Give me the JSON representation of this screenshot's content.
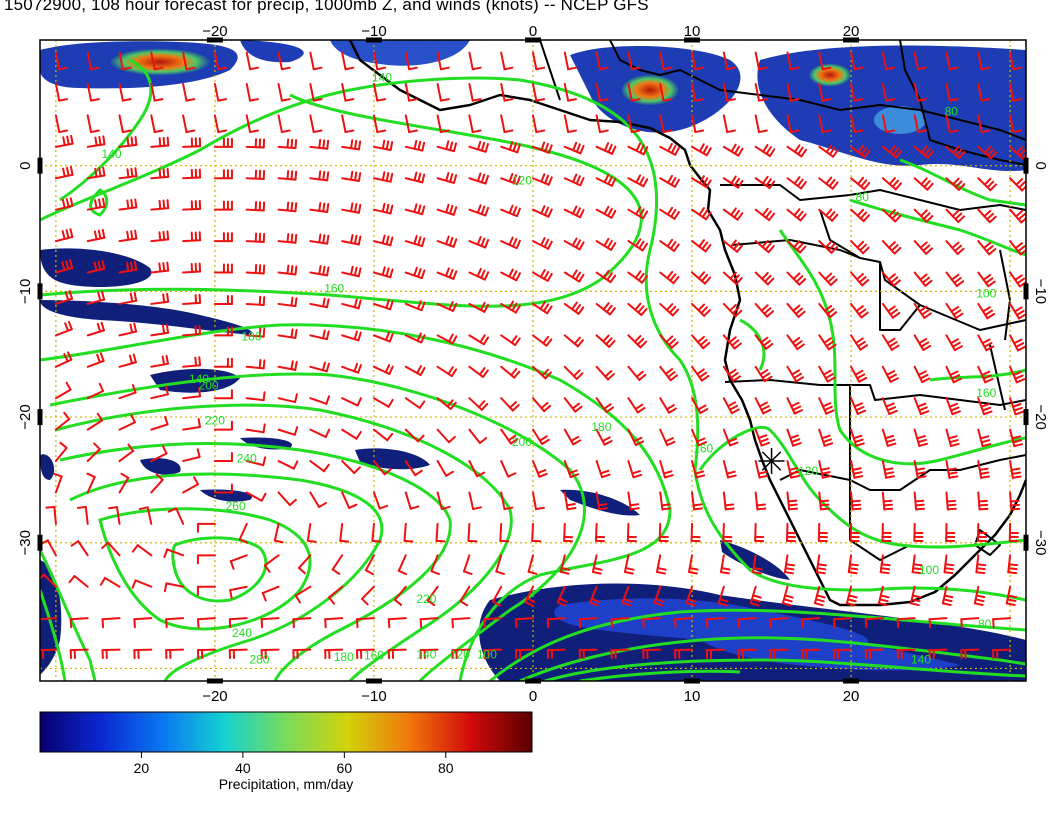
{
  "title": "15072900, 108 hour forecast for precip, 1000mb Z, and winds (knots) -- NCEP GFS",
  "map": {
    "lon_range": [
      -31,
      31
    ],
    "lat_range": [
      -41,
      10
    ],
    "lon_ticks": [
      {
        "value": -20,
        "label": "−20"
      },
      {
        "value": -10,
        "label": "−10"
      },
      {
        "value": 0,
        "label": "0"
      },
      {
        "value": 10,
        "label": "10"
      },
      {
        "value": 20,
        "label": "20"
      }
    ],
    "lat_ticks": [
      {
        "value": 0,
        "label": "0"
      },
      {
        "value": -10,
        "label": "−10"
      },
      {
        "value": -20,
        "label": "−20"
      },
      {
        "value": -30,
        "label": "−30"
      }
    ],
    "graticule_lons": [
      -30,
      -20,
      -10,
      0,
      10,
      20,
      30
    ],
    "graticule_lats": [
      10,
      0,
      -10,
      -20,
      -30,
      -40
    ],
    "contour_labels": [
      {
        "text": "140",
        "lon": -21,
        "lat": -17.3
      },
      {
        "text": "140",
        "lon": -9.5,
        "lat": 6.7
      },
      {
        "text": "140",
        "lon": -26.5,
        "lat": 0.6
      },
      {
        "text": "160",
        "lon": -12.5,
        "lat": -10.1
      },
      {
        "text": "180",
        "lon": -17.7,
        "lat": -13.9
      },
      {
        "text": "200",
        "lon": -20.4,
        "lat": -17.8
      },
      {
        "text": "220",
        "lon": -20,
        "lat": -20.6
      },
      {
        "text": "240",
        "lon": -18,
        "lat": -23.6
      },
      {
        "text": "260",
        "lon": -18.7,
        "lat": -27.4
      },
      {
        "text": "200",
        "lon": -0.7,
        "lat": -22.3
      },
      {
        "text": "180",
        "lon": 4.3,
        "lat": -21.1
      },
      {
        "text": "160",
        "lon": 10.7,
        "lat": -22.8
      },
      {
        "text": "120",
        "lon": -0.7,
        "lat": -1.5
      },
      {
        "text": "120",
        "lon": 17.3,
        "lat": -24.6
      },
      {
        "text": "220",
        "lon": -6.7,
        "lat": -34.8
      },
      {
        "text": "240",
        "lon": -18.3,
        "lat": -37.5
      },
      {
        "text": "280",
        "lon": -17.2,
        "lat": -39.6
      },
      {
        "text": "180",
        "lon": -11.9,
        "lat": -39.4
      },
      {
        "text": "160",
        "lon": -10,
        "lat": -39.3
      },
      {
        "text": "140",
        "lon": -6.7,
        "lat": -39.2
      },
      {
        "text": "120",
        "lon": -4.6,
        "lat": -39.2
      },
      {
        "text": "100",
        "lon": -2.9,
        "lat": -39.2
      },
      {
        "text": "80",
        "lon": 28.4,
        "lat": -36.8
      },
      {
        "text": "100",
        "lon": 24.9,
        "lat": -32.5
      },
      {
        "text": "140",
        "lon": 24.4,
        "lat": -39.6
      },
      {
        "text": "160",
        "lon": 28.5,
        "lat": -18.4
      },
      {
        "text": "80",
        "lon": 26.3,
        "lat": 4
      },
      {
        "text": "80",
        "lon": 20.7,
        "lat": -2.8
      },
      {
        "text": "100",
        "lon": 28.5,
        "lat": -10.5
      }
    ],
    "station_marker": {
      "name": "star-marker",
      "lon": 15,
      "lat": -23.5
    }
  },
  "colorbar": {
    "label": "Precipitation, mm/day",
    "range": [
      0,
      97
    ],
    "ticks": [
      20,
      40,
      60,
      80
    ],
    "stops": [
      "#08006e",
      "#0a28d2",
      "#0a78f0",
      "#14d2d2",
      "#78dc5a",
      "#d2d20a",
      "#f0780a",
      "#d20a0a",
      "#5a0000"
    ]
  },
  "colors": {
    "wind_barbs": "#ee1111",
    "contours": "#22dd22",
    "coastlines": "#000000",
    "graticule": "#d2b400",
    "precip_light": "#10207a"
  }
}
